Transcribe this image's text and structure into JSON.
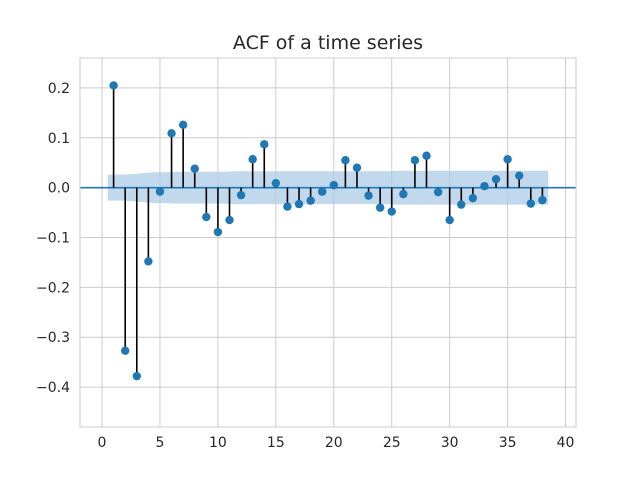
{
  "chart_data": {
    "type": "stem",
    "title": "ACF of a time series",
    "xlabel": "",
    "ylabel": "",
    "xlim": [
      -1.9,
      40.9
    ],
    "ylim": [
      -0.48,
      0.26
    ],
    "x_ticks": [
      0,
      5,
      10,
      15,
      20,
      25,
      30,
      35,
      40
    ],
    "y_ticks": [
      0.2,
      0.1,
      0.0,
      -0.1,
      -0.2,
      -0.3,
      -0.4
    ],
    "x_tick_labels": [
      "0",
      "5",
      "10",
      "15",
      "20",
      "25",
      "30",
      "35",
      "40"
    ],
    "y_tick_labels": [
      "0.2",
      "0.1",
      "0.0",
      "−0.1",
      "−0.2",
      "−0.3",
      "−0.4"
    ],
    "grid": true,
    "baseline": 0,
    "lags": [
      1,
      2,
      3,
      4,
      5,
      6,
      7,
      8,
      9,
      10,
      11,
      12,
      13,
      14,
      15,
      16,
      17,
      18,
      19,
      20,
      21,
      22,
      23,
      24,
      25,
      26,
      27,
      28,
      29,
      30,
      31,
      32,
      33,
      34,
      35,
      36,
      37,
      38
    ],
    "values": [
      0.205,
      -0.327,
      -0.378,
      -0.148,
      -0.008,
      0.109,
      0.126,
      0.038,
      -0.059,
      -0.089,
      -0.065,
      -0.015,
      0.057,
      0.087,
      0.009,
      -0.038,
      -0.033,
      -0.026,
      -0.008,
      0.005,
      0.055,
      0.04,
      -0.016,
      -0.04,
      -0.048,
      -0.013,
      0.055,
      0.064,
      -0.009,
      -0.065,
      -0.034,
      -0.021,
      0.003,
      0.017,
      0.057,
      0.024,
      -0.032,
      -0.025
    ],
    "confidence_band": {
      "x": [
        0.5,
        1.5,
        2.5,
        3.5,
        4.5,
        5.5,
        6.5,
        7.5,
        8.5,
        9.5,
        10.5,
        11.5,
        12.5,
        13.5,
        14.5,
        15.5,
        16.5,
        17.5,
        18.5,
        19.5,
        20.5,
        21.5,
        22.5,
        23.5,
        24.5,
        25.5,
        26.5,
        27.5,
        28.5,
        29.5,
        30.5,
        31.5,
        32.5,
        33.5,
        34.5,
        35.5,
        36.5,
        37.5,
        38.5
      ],
      "upper": [
        0.026,
        0.026,
        0.027,
        0.029,
        0.031,
        0.031,
        0.032,
        0.032,
        0.032,
        0.032,
        0.032,
        0.033,
        0.033,
        0.033,
        0.033,
        0.033,
        0.033,
        0.033,
        0.033,
        0.033,
        0.033,
        0.033,
        0.033,
        0.033,
        0.033,
        0.034,
        0.034,
        0.034,
        0.034,
        0.034,
        0.034,
        0.034,
        0.034,
        0.034,
        0.034,
        0.034,
        0.034,
        0.034,
        0.034
      ]
    },
    "colors": {
      "marker": "#1f77b4",
      "stem": "#000000",
      "baseline": "#1f77b4",
      "band": "#aecbe5",
      "grid": "#cccccc",
      "axes_edge": "#cccccc"
    }
  }
}
